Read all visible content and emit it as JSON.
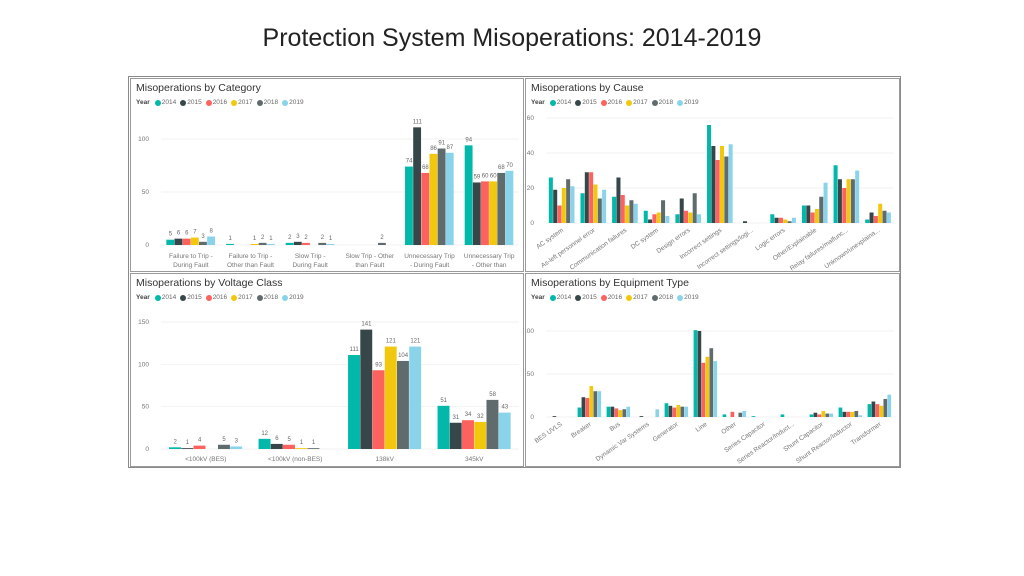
{
  "title": "Protection System Misoperations:  2014-2019",
  "legend_title": "Year",
  "years": [
    "2014",
    "2015",
    "2016",
    "2017",
    "2018",
    "2019"
  ],
  "colors": [
    "#01B8AA",
    "#374649",
    "#FD625E",
    "#F2C80F",
    "#5F6B6D",
    "#8AD4EB"
  ],
  "chart_data": [
    {
      "type": "bar",
      "title": "Misoperations by Category",
      "data_labels": true,
      "yticks": [
        0,
        50,
        100
      ],
      "grid": true,
      "legend_position": "top-left",
      "categories": [
        "Failure to Trip - During Fault",
        "Failure to Trip - Other than Fault",
        "Slow Trip - During Fault",
        "Slow Trip - Other than Fault",
        "Unnecessary Trip - During Fault",
        "Unnecessary Trip - Other than Fault"
      ],
      "series": [
        {
          "name": "2014",
          "values": [
            5,
            1,
            2,
            null,
            74,
            94
          ]
        },
        {
          "name": "2015",
          "values": [
            6,
            null,
            3,
            null,
            111,
            59
          ]
        },
        {
          "name": "2016",
          "values": [
            6,
            null,
            2,
            null,
            68,
            60
          ]
        },
        {
          "name": "2017",
          "values": [
            7,
            1,
            null,
            null,
            86,
            60
          ]
        },
        {
          "name": "2018",
          "values": [
            3,
            2,
            2,
            2,
            91,
            68
          ]
        },
        {
          "name": "2019",
          "values": [
            8,
            1,
            1,
            null,
            87,
            70
          ]
        }
      ]
    },
    {
      "type": "bar",
      "title": "Misoperations by Cause",
      "data_labels": false,
      "yticks": [
        0,
        20,
        40,
        60
      ],
      "grid": true,
      "legend_position": "top-left",
      "categories": [
        "AC system",
        "As-left personnel error",
        "Communication failures",
        "DC system",
        "Design errors",
        "Incorrect settings",
        "Incorrect settings/logi...",
        "Logic errors",
        "Other/Explainable",
        "Relay failures/malfunc...",
        "Unknown/unexplaina..."
      ],
      "series": [
        {
          "name": "2014",
          "values": [
            26,
            17,
            15,
            7,
            5,
            56,
            null,
            5,
            10,
            33,
            2
          ]
        },
        {
          "name": "2015",
          "values": [
            19,
            29,
            26,
            2,
            14,
            44,
            1,
            3,
            10,
            25,
            6
          ]
        },
        {
          "name": "2016",
          "values": [
            10,
            29,
            16,
            5,
            7,
            36,
            null,
            3,
            6,
            20,
            4
          ]
        },
        {
          "name": "2017",
          "values": [
            20,
            22,
            10,
            6,
            6,
            44,
            null,
            2,
            8,
            25,
            11
          ]
        },
        {
          "name": "2018",
          "values": [
            25,
            14,
            13,
            13,
            17,
            38,
            null,
            1,
            15,
            25,
            7
          ]
        },
        {
          "name": "2019",
          "values": [
            21,
            19,
            11,
            4,
            5,
            45,
            null,
            3,
            23,
            30,
            6
          ]
        }
      ]
    },
    {
      "type": "bar",
      "title": "Misoperations by Voltage Class",
      "data_labels": true,
      "yticks": [
        0,
        50,
        100,
        150
      ],
      "grid": true,
      "legend_position": "top-left",
      "categories": [
        "<100kV (BES)",
        "<100kV (non-BES)",
        "138kV",
        "345kV"
      ],
      "series": [
        {
          "name": "2014",
          "values": [
            2,
            12,
            111,
            51
          ]
        },
        {
          "name": "2015",
          "values": [
            1,
            6,
            141,
            31
          ]
        },
        {
          "name": "2016",
          "values": [
            4,
            5,
            93,
            34
          ]
        },
        {
          "name": "2017",
          "values": [
            null,
            1,
            121,
            32
          ]
        },
        {
          "name": "2018",
          "values": [
            5,
            1,
            104,
            58
          ]
        },
        {
          "name": "2019",
          "values": [
            3,
            null,
            121,
            43
          ]
        }
      ]
    },
    {
      "type": "bar",
      "title": "Misoperations by Equipment Type",
      "data_labels": false,
      "yticks": [
        0,
        50,
        100
      ],
      "grid": true,
      "legend_position": "top-left",
      "categories": [
        "BES UVLS",
        "Breaker",
        "Bus",
        "Dynamic Var Systems",
        "Generator",
        "Line",
        "Other",
        "Series Capacitor",
        "Series Reactor/Induct...",
        "Shunt Capacitor",
        "Shunt Reactor/Inductor",
        "Transformer"
      ],
      "series": [
        {
          "name": "2014",
          "values": [
            null,
            11,
            12,
            null,
            16,
            101,
            3,
            1,
            3,
            3,
            11,
            15
          ]
        },
        {
          "name": "2015",
          "values": [
            1,
            23,
            12,
            1,
            13,
            100,
            null,
            null,
            null,
            5,
            6,
            18
          ]
        },
        {
          "name": "2016",
          "values": [
            null,
            22,
            10,
            null,
            11,
            63,
            6,
            null,
            null,
            3,
            6,
            15
          ]
        },
        {
          "name": "2017",
          "values": [
            null,
            36,
            8,
            null,
            14,
            70,
            null,
            null,
            null,
            7,
            6,
            13
          ]
        },
        {
          "name": "2018",
          "values": [
            null,
            30,
            9,
            null,
            12,
            80,
            5,
            null,
            null,
            4,
            7,
            21
          ]
        },
        {
          "name": "2019",
          "values": [
            null,
            30,
            12,
            9,
            12,
            65,
            7,
            null,
            null,
            4,
            2,
            26
          ]
        }
      ]
    }
  ]
}
